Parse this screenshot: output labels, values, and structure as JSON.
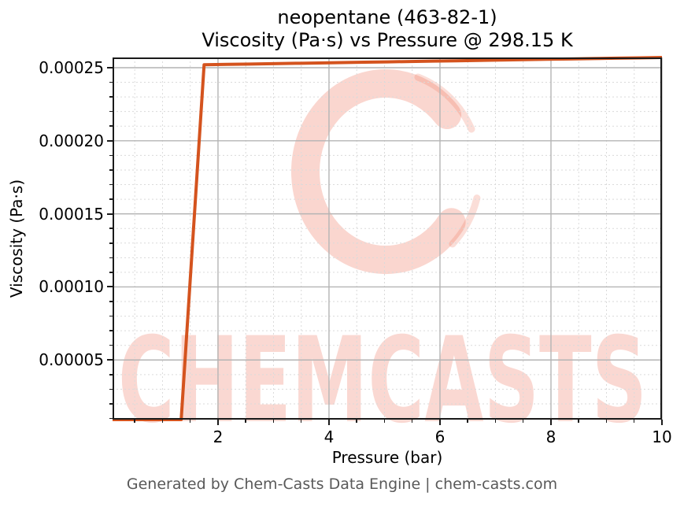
{
  "title": {
    "line1": "neopentane (463-82-1)",
    "line2": "Viscosity (Pa·s) vs Pressure @ 298.15 K"
  },
  "footer": {
    "text": "Generated by Chem-Casts Data Engine | chem-casts.com"
  },
  "watermark": {
    "text": "CHEMCASTS",
    "logo": "c-swirl-brush-ring"
  },
  "colors": {
    "line": "#d4531e",
    "watermark": "#ec684e",
    "grid_major": "#b4b4b4",
    "grid_minor": "#dadada",
    "spine": "#1a1a1a",
    "tick": "#1a1a1a",
    "footer_text": "#595959",
    "title_text": "#000000"
  },
  "chart_data": {
    "type": "line",
    "title": "neopentane (463-82-1)",
    "subtitle": "Viscosity (Pa·s) vs Pressure @ 298.15 K",
    "xlabel": "Pressure (bar)",
    "ylabel": "Viscosity (Pa·s)",
    "xlim": [
      0.1,
      10
    ],
    "ylim": [
      9.2e-06,
      0.000257
    ],
    "grid": {
      "major": "solid",
      "minor": "dashed"
    },
    "legend_position": "none",
    "xticks": {
      "values": [
        2,
        4,
        6,
        8,
        10
      ],
      "labels": [
        "2",
        "4",
        "6",
        "8",
        "10"
      ]
    },
    "yticks": {
      "values": [
        5e-05,
        0.0001,
        0.00015,
        0.0002,
        0.00025
      ],
      "labels": [
        "0.00005",
        "0.00010",
        "0.00015",
        "0.00020",
        "0.00025"
      ]
    },
    "minor_ticks": {
      "x_step": 0.5,
      "y_step": 1e-05
    },
    "series": [
      {
        "name": "viscosity",
        "color": "#d4531e",
        "x": [
          0.1,
          0.5125,
          0.925,
          1.3375,
          1.75,
          2.1625,
          2.575,
          2.9875,
          3.4,
          3.8125,
          4.225,
          4.6375,
          5.05,
          5.4625,
          5.875,
          6.2875,
          6.7,
          7.1125,
          7.525,
          7.9375,
          8.35,
          8.7625,
          9.175,
          9.5875,
          10.0
        ],
        "y": [
          9.2e-06,
          9.2e-06,
          9.2e-06,
          9.2e-06,
          0.000252,
          0.00025225,
          0.0002525,
          0.00025275,
          0.000253,
          0.00025325,
          0.0002535,
          0.00025375,
          0.000254,
          0.00025425,
          0.0002545,
          0.00025475,
          0.000255,
          0.00025525,
          0.0002555,
          0.00025575,
          0.000256,
          0.00025625,
          0.0002565,
          0.00025675,
          0.000257
        ]
      }
    ]
  }
}
